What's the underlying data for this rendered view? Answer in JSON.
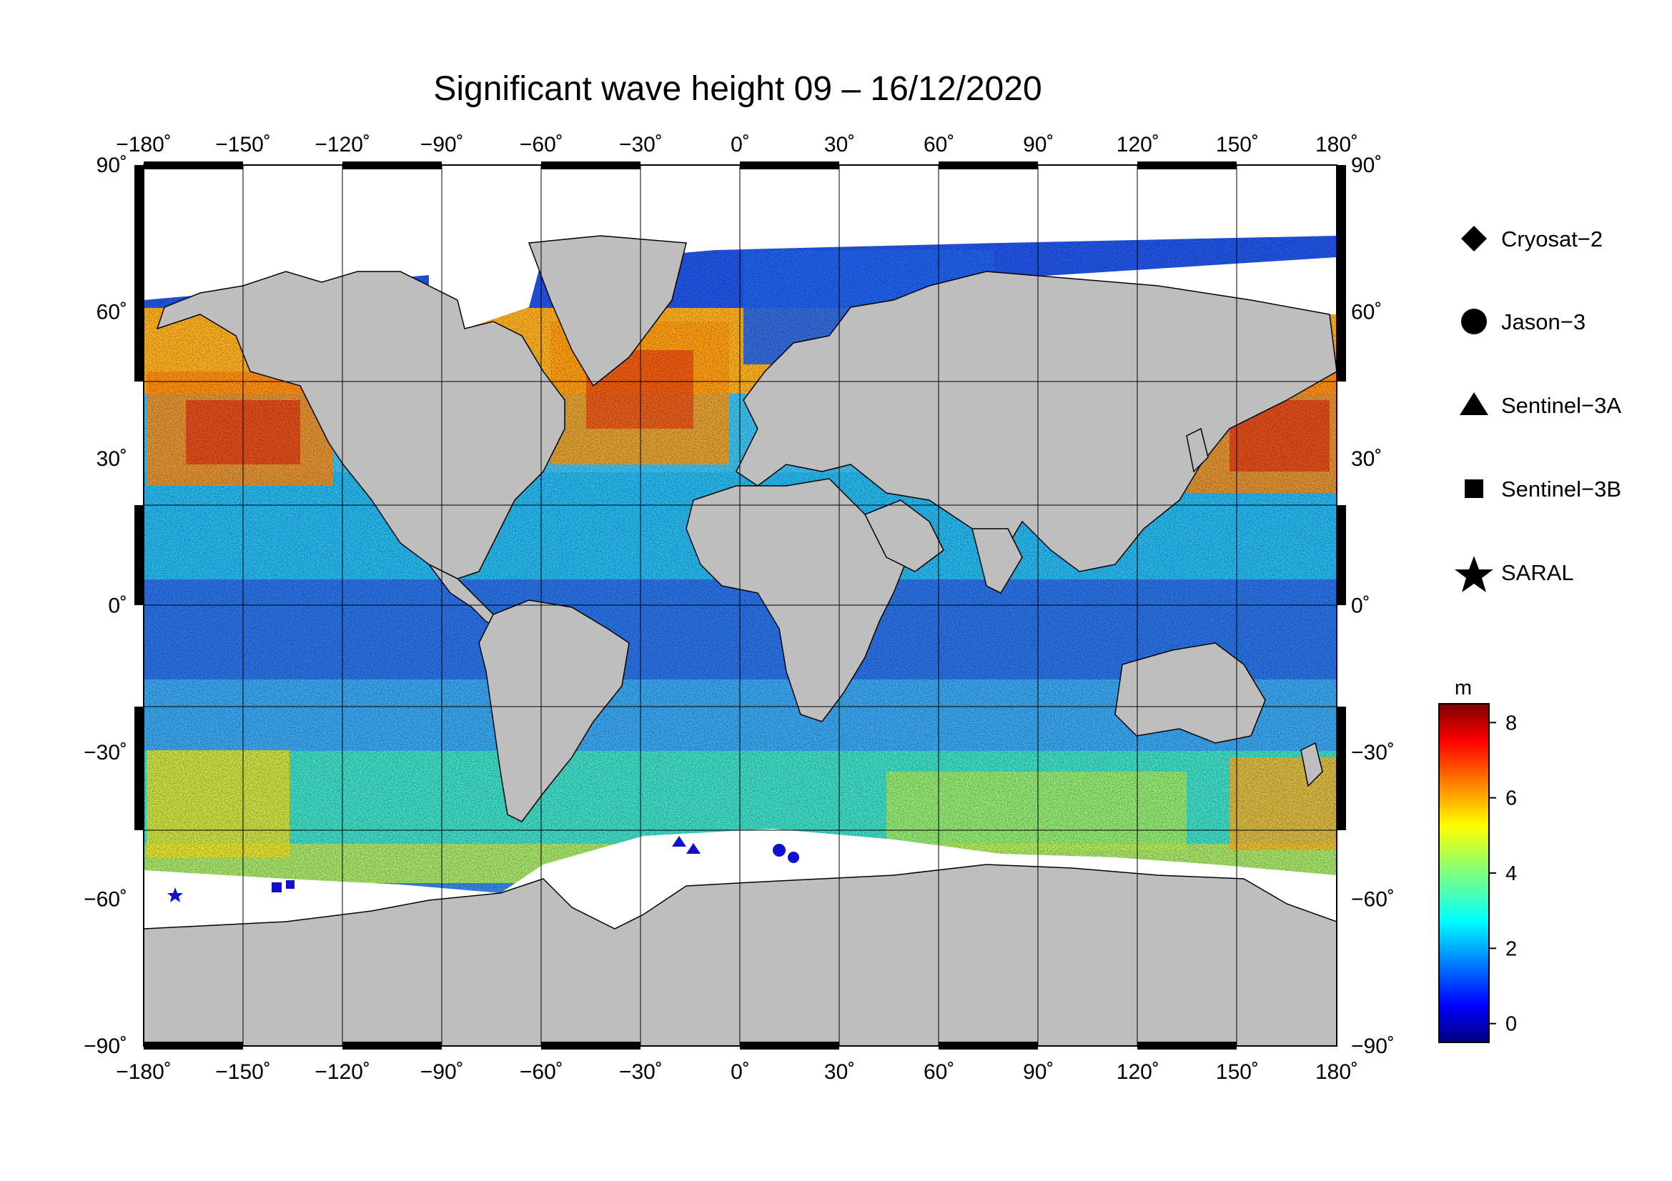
{
  "title": "Significant wave height 09 – 16/12/2020",
  "map": {
    "projection": "equirectangular",
    "lon_range": [
      -180,
      180
    ],
    "lat_range": [
      -90,
      90
    ],
    "lon_ticks": [
      "−180˚",
      "−150˚",
      "−120˚",
      "−90˚",
      "−60˚",
      "−30˚",
      "0˚",
      "30˚",
      "60˚",
      "90˚",
      "120˚",
      "150˚",
      "180˚"
    ],
    "lat_ticks": [
      "90˚",
      "60˚",
      "30˚",
      "0˚",
      "−30˚",
      "−60˚",
      "−90˚"
    ],
    "grid": true,
    "land_color": "#bebebe",
    "ice_color": "#ffffff"
  },
  "legend": {
    "items": [
      {
        "label": "Cryosat−2",
        "marker": "diamond"
      },
      {
        "label": "Jason−3",
        "marker": "circle"
      },
      {
        "label": "Sentinel−3A",
        "marker": "triangle"
      },
      {
        "label": "Sentinel−3B",
        "marker": "square"
      },
      {
        "label": "SARAL",
        "marker": "star"
      }
    ]
  },
  "colorbar": {
    "unit": "m",
    "range": [
      -0.5,
      8.5
    ],
    "ticks": [
      "8",
      "6",
      "4",
      "2",
      "0"
    ],
    "colormap": "jet"
  }
}
